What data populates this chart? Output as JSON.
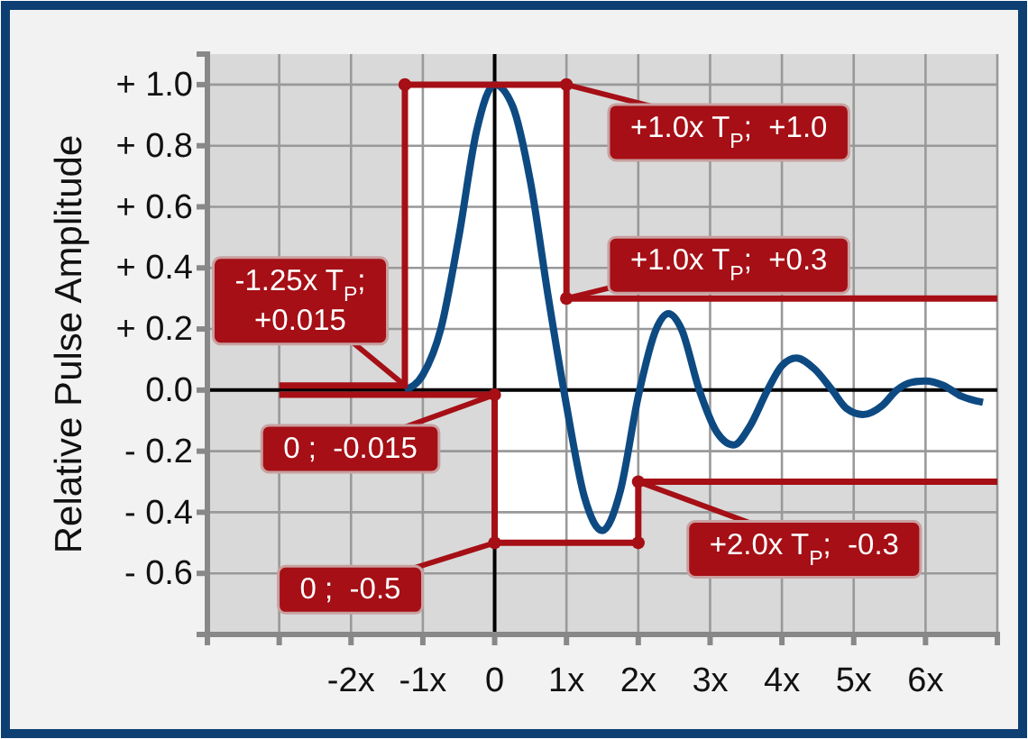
{
  "chart_data": {
    "type": "line",
    "ylabel": "Relative Pulse Amplitude",
    "xlim": [
      -4,
      7
    ],
    "ylim": [
      -0.8,
      1.1
    ],
    "xticks": [
      {
        "value": -4,
        "label": null
      },
      {
        "value": -3,
        "label": null
      },
      {
        "value": -2,
        "label": "-2x"
      },
      {
        "value": -1,
        "label": "-1x"
      },
      {
        "value": 0,
        "label": "0"
      },
      {
        "value": 1,
        "label": "1x"
      },
      {
        "value": 2,
        "label": "2x"
      },
      {
        "value": 3,
        "label": "3x"
      },
      {
        "value": 4,
        "label": "4x"
      },
      {
        "value": 5,
        "label": "5x"
      },
      {
        "value": 6,
        "label": "6x"
      },
      {
        "value": 7,
        "label": null
      }
    ],
    "yticks": [
      {
        "value": 1.0,
        "label": "+ 1.0"
      },
      {
        "value": 0.8,
        "label": "+ 0.8"
      },
      {
        "value": 0.6,
        "label": "+ 0.6"
      },
      {
        "value": 0.4,
        "label": "+ 0.4"
      },
      {
        "value": 0.2,
        "label": "+ 0.2"
      },
      {
        "value": 0,
        "label": "0.0"
      },
      {
        "value": -0.2,
        "label": "- 0.2"
      },
      {
        "value": -0.4,
        "label": "- 0.4"
      },
      {
        "value": -0.6,
        "label": "- 0.6"
      },
      {
        "value": -0.8,
        "label": null
      }
    ],
    "grid": true,
    "series": [
      {
        "color": "#0e4a82",
        "x": [
          -1.25,
          -1.0,
          -0.75,
          -0.5,
          -0.25,
          0,
          0.25,
          0.5,
          0.75,
          1.0,
          1.25,
          1.5,
          1.75,
          2.0,
          2.25,
          2.42,
          2.6,
          2.85,
          3.1,
          3.33,
          3.55,
          3.8,
          4.0,
          4.2,
          4.45,
          4.7,
          4.9,
          5.13,
          5.4,
          5.6,
          5.8,
          6.0,
          6.25,
          6.5,
          6.8
        ],
        "values": [
          0,
          0.05,
          0.2,
          0.5,
          0.85,
          1.0,
          0.93,
          0.68,
          0.3,
          -0.05,
          -0.35,
          -0.46,
          -0.33,
          -0.02,
          0.2,
          0.25,
          0.2,
          0,
          -0.14,
          -0.18,
          -0.12,
          0,
          0.08,
          0.105,
          0.07,
          0,
          -0.06,
          -0.08,
          -0.05,
          0,
          0.025,
          0.03,
          0.015,
          -0.02,
          -0.04
        ]
      },
      {
        "color": "#a50f15",
        "x": [
          -3,
          -1.25,
          -1.25,
          0,
          0,
          1,
          1,
          2,
          2,
          7
        ],
        "values": [
          0.015,
          0.015,
          1.0,
          1.0,
          1.0,
          1.0,
          0.3,
          0.3,
          0.3,
          0.3
        ],
        "lower": [
          -0.015,
          -0.015,
          -0.015,
          -0.015,
          -0.5,
          -0.5,
          -0.5,
          -0.5,
          -0.3,
          -0.3
        ],
        "upper": [
          0.015,
          0.015,
          1.0,
          1.0,
          1.0,
          1.0,
          0.3,
          0.3,
          0.3,
          0.3
        ]
      },
      {
        "color": "#a50f15",
        "x": [
          -3,
          -1.25,
          -1.25,
          0,
          0,
          1,
          1,
          2,
          2,
          7
        ],
        "values": [
          -0.015,
          -0.015,
          -0.015,
          -0.015,
          -0.5,
          -0.5,
          -0.5,
          -0.5,
          -0.3,
          -0.3
        ]
      },
      {
        "type": "scatter",
        "color": "#a50f15",
        "marker": "circle",
        "x": [
          -1.25,
          1,
          1,
          0,
          0,
          2,
          2
        ],
        "values": [
          1.0,
          1.0,
          0.3,
          -0.015,
          -0.5,
          -0.5,
          -0.3
        ]
      }
    ],
    "annotations": [
      {
        "text": "-1.25x T$_{P}$;\n+0.015",
        "x": -1.25,
        "y": 0.015
      },
      {
        "text": "0 ;  -0.015",
        "x": 0,
        "y": -0.015
      },
      {
        "text": "0 ;  -0.5",
        "x": 0,
        "y": -0.5
      },
      {
        "text": "+1.0x T$_{P}$;  +1.0",
        "x": 1,
        "y": 1.0
      },
      {
        "text": "+1.0x T$_{P}$;  +0.3",
        "x": 1,
        "y": 0.3
      },
      {
        "text": "+2.0x T$_{P}$;  -0.3",
        "x": 2,
        "y": -0.3
      }
    ]
  }
}
